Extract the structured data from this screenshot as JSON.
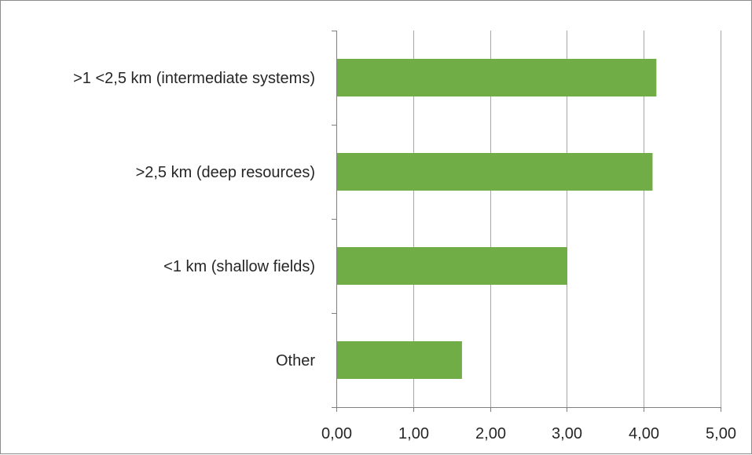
{
  "chart_data": {
    "type": "bar",
    "orientation": "horizontal",
    "categories": [
      ">1 <2,5 km (intermediate systems)",
      ">2,5 km (deep resources)",
      "<1 km (shallow fields)",
      "Other"
    ],
    "values": [
      4.16,
      4.11,
      3.0,
      1.63
    ],
    "xlim": [
      0,
      5
    ],
    "xticks": [
      "0,00",
      "1,00",
      "2,00",
      "3,00",
      "4,00",
      "5,00"
    ],
    "grid": true,
    "legend": "none",
    "bar_color": "#70ad47",
    "grid_color": "#a6a6a6",
    "axis_color": "#7f7f7f"
  }
}
